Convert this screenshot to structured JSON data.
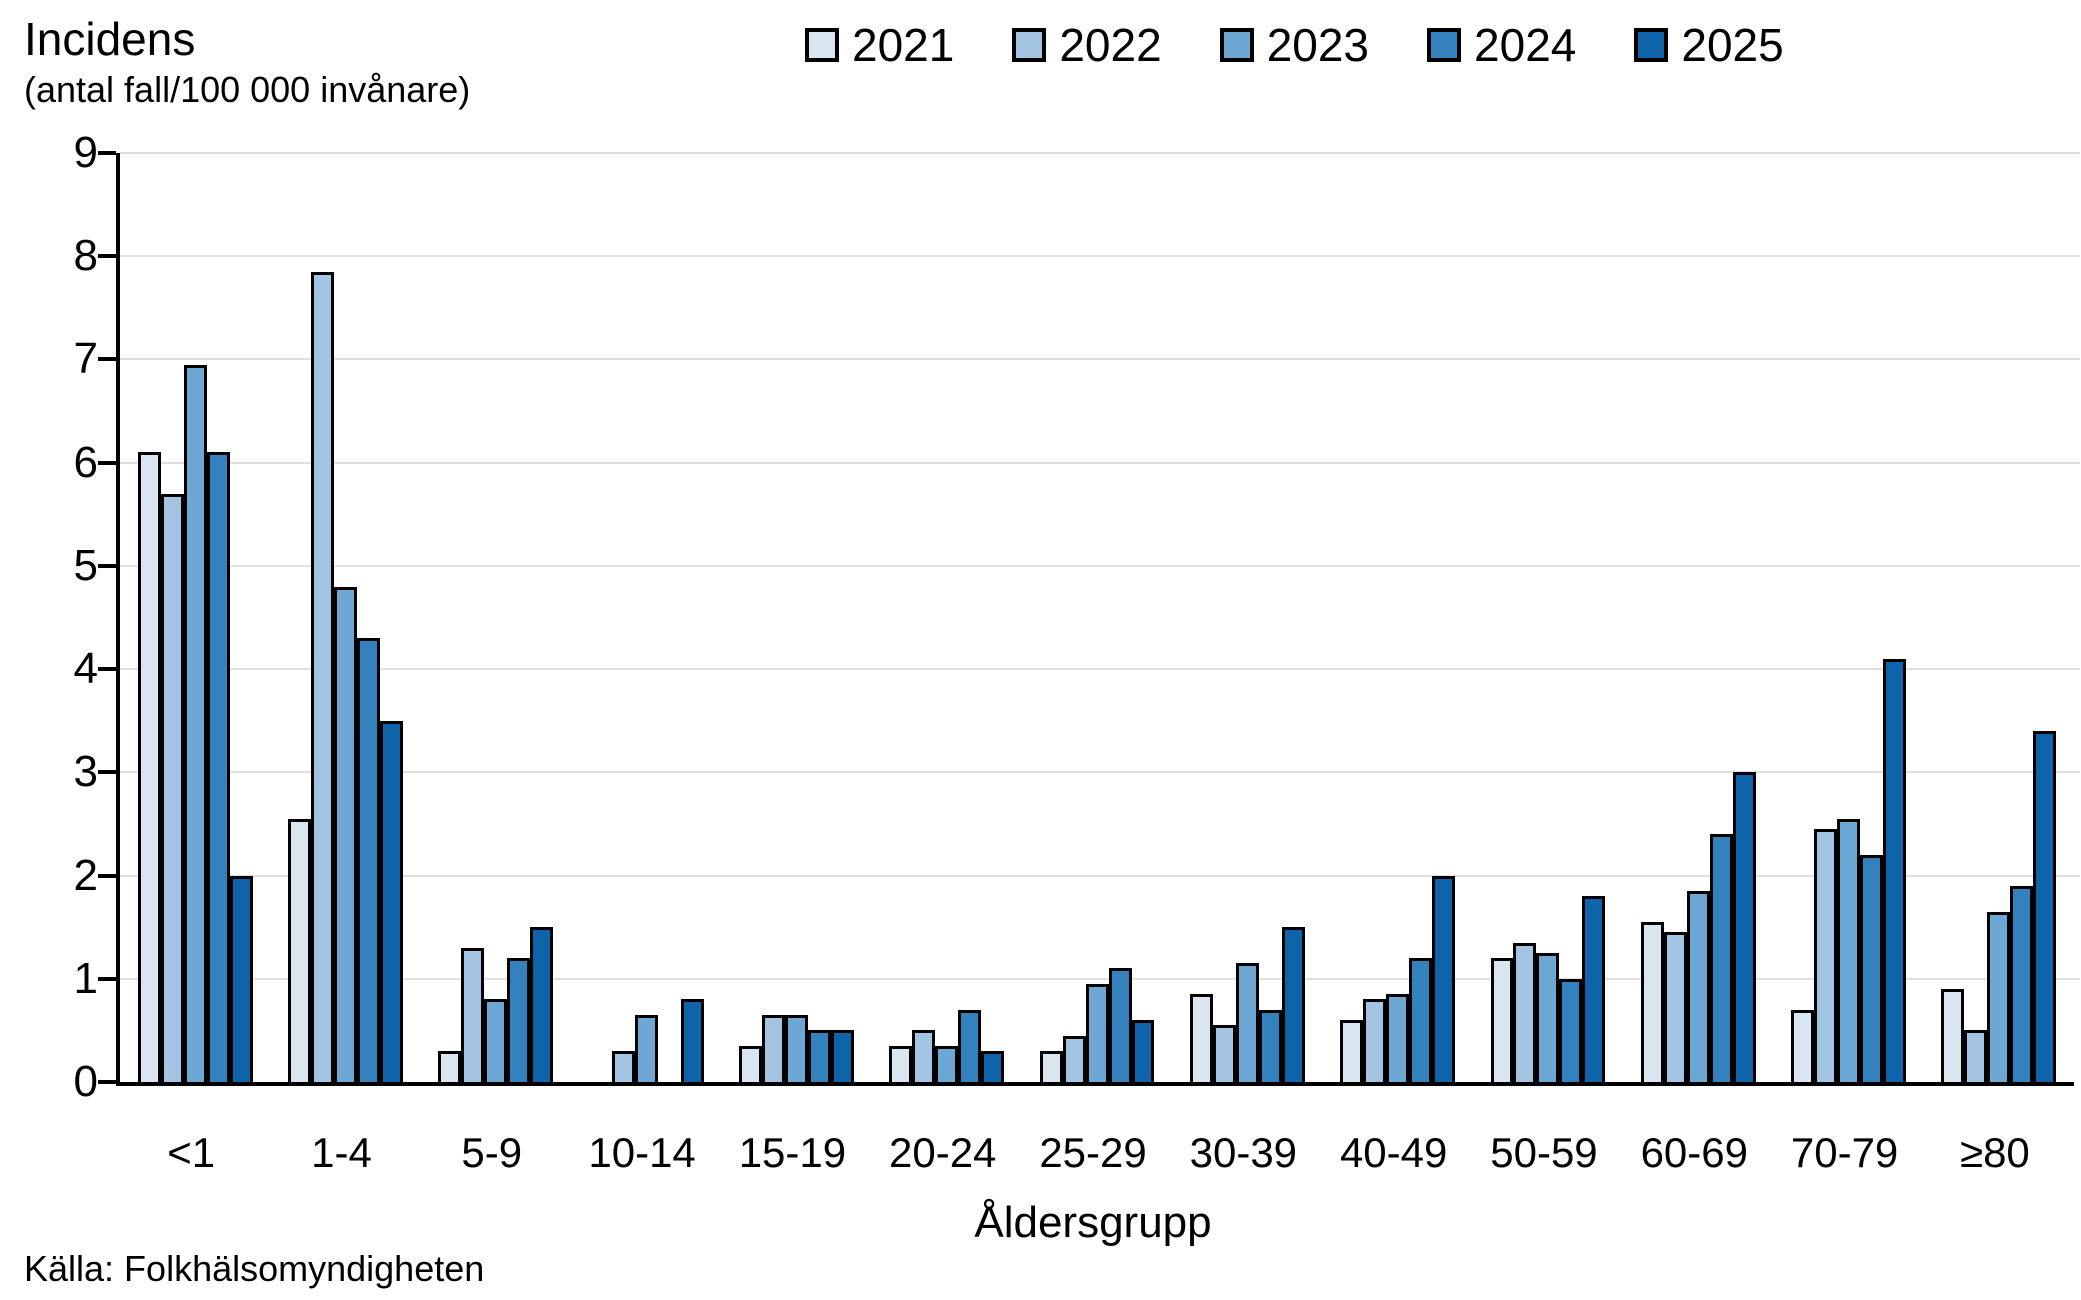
{
  "chart_data": {
    "type": "bar",
    "title": "Incidens",
    "subtitle": "(antal fall/100 000 invånare)",
    "xlabel": "Åldersgrupp",
    "source": "Källa: Folkhälsomyndigheten",
    "ylim": [
      0,
      9
    ],
    "yticks": [
      0,
      1,
      2,
      3,
      4,
      5,
      6,
      7,
      8,
      9
    ],
    "grid": "horizontal",
    "legend_position": "top-center",
    "bar_outline_color": "#000000",
    "categories": [
      "<1",
      "1-4",
      "5-9",
      "10-14",
      "15-19",
      "20-24",
      "25-29",
      "30-39",
      "40-49",
      "50-59",
      "60-69",
      "70-79",
      "≥80"
    ],
    "series": [
      {
        "name": "2021",
        "color": "#d9e6f2",
        "values": [
          6.1,
          2.55,
          0.3,
          0,
          0.35,
          0.35,
          0.3,
          0.85,
          0.6,
          1.2,
          1.55,
          0.7,
          0.9
        ]
      },
      {
        "name": "2022",
        "color": "#a3c5e3",
        "values": [
          5.7,
          7.85,
          1.3,
          0.3,
          0.65,
          0.5,
          0.45,
          0.55,
          0.8,
          1.35,
          1.45,
          2.45,
          0.5
        ]
      },
      {
        "name": "2023",
        "color": "#6da7d3",
        "values": [
          6.95,
          4.8,
          0.8,
          0.65,
          0.65,
          0.35,
          0.95,
          1.15,
          0.85,
          1.25,
          1.85,
          2.55,
          1.65
        ]
      },
      {
        "name": "2024",
        "color": "#3381bd",
        "values": [
          6.1,
          4.3,
          1.2,
          0,
          0.5,
          0.7,
          1.1,
          0.7,
          1.2,
          1.0,
          2.4,
          2.2,
          1.9
        ]
      },
      {
        "name": "2025",
        "color": "#0f63a9",
        "values": [
          2.0,
          3.5,
          1.5,
          0.8,
          0.5,
          0.3,
          0.6,
          1.5,
          2.0,
          1.8,
          3.0,
          4.1,
          3.4
        ]
      }
    ]
  }
}
